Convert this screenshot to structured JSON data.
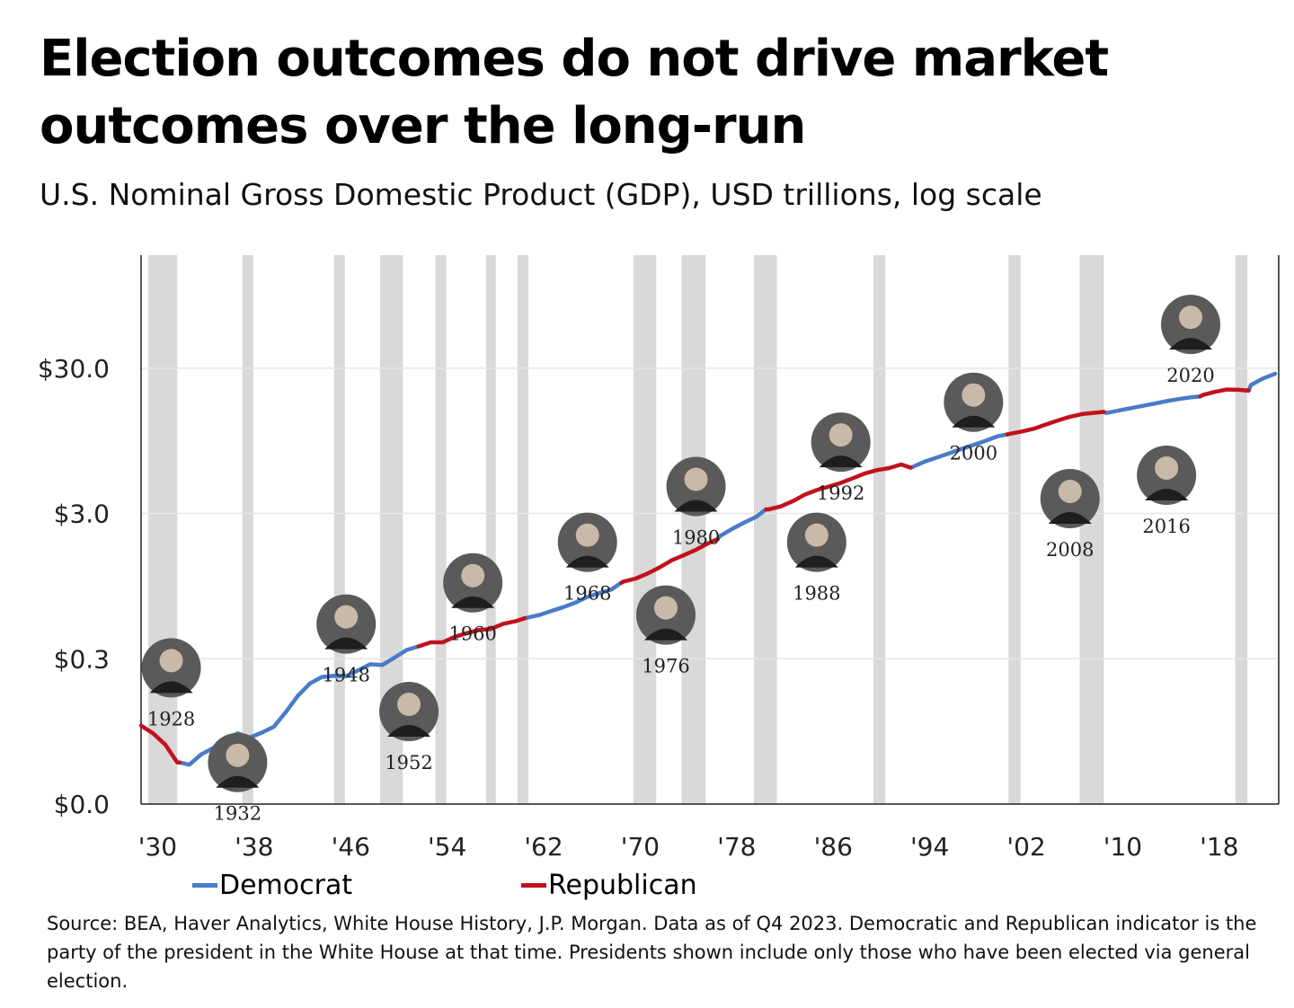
{
  "title": "Election outcomes do not drive market outcomes over the long-run",
  "subtitle": "U.S. Nominal Gross Domestic Product (GDP), USD trillions, log scale",
  "source": "Source: BEA, Haver Analytics, White House History, J.P. Morgan. Data as of Q4 2023. Democratic and Republican indicator is the party of the president in the White House at that time. Presidents shown include only those who have been elected via general election.",
  "legend": {
    "democrat": "Democrat",
    "republican": "Republican"
  },
  "colors": {
    "democrat": "#4a7bc8",
    "republican": "#c0121c",
    "recession": "#d9d9d9",
    "grid": "#e6e6e6"
  },
  "chart_data": {
    "type": "line",
    "title": "Election outcomes do not drive market outcomes over the long-run",
    "ylabel": "U.S. Nominal Gross Domestic Product (GDP), USD trillions, log scale",
    "y_scale": "log",
    "xlim": [
      1929,
      2023
    ],
    "y_ticks": [
      {
        "value": 0.03,
        "label": "$0.0"
      },
      {
        "value": 0.3,
        "label": "$0.3"
      },
      {
        "value": 3.0,
        "label": "$3.0"
      },
      {
        "value": 30.0,
        "label": "$30.0"
      }
    ],
    "x_ticks": [
      {
        "value": 1930,
        "label": "'30"
      },
      {
        "value": 1938,
        "label": "'38"
      },
      {
        "value": 1946,
        "label": "'46"
      },
      {
        "value": 1954,
        "label": "'54"
      },
      {
        "value": 1962,
        "label": "'62"
      },
      {
        "value": 1970,
        "label": "'70"
      },
      {
        "value": 1978,
        "label": "'78"
      },
      {
        "value": 1986,
        "label": "'86"
      },
      {
        "value": 1994,
        "label": "'94"
      },
      {
        "value": 2002,
        "label": "'02"
      },
      {
        "value": 2010,
        "label": "'10"
      },
      {
        "value": 2018,
        "label": "'18"
      }
    ],
    "grid": true,
    "legend_position": "bottom-left",
    "recessions": [
      [
        1929.6,
        1932.0
      ],
      [
        1937.4,
        1938.3
      ],
      [
        1945.0,
        1945.9
      ],
      [
        1948.8,
        1950.7
      ],
      [
        1953.4,
        1954.3
      ],
      [
        1957.6,
        1958.4
      ],
      [
        1960.2,
        1961.1
      ],
      [
        1969.8,
        1971.7
      ],
      [
        1973.8,
        1975.8
      ],
      [
        1979.8,
        1981.7
      ],
      [
        1989.7,
        1990.7
      ],
      [
        2000.9,
        2001.9
      ],
      [
        2006.8,
        2008.8
      ],
      [
        2019.7,
        2020.7
      ]
    ],
    "series": [
      {
        "name": "Democrat",
        "segments": [
          [
            [
              1932.2,
              0.058
            ],
            [
              1933.0,
              0.056
            ],
            [
              1934.0,
              0.066
            ],
            [
              1935.0,
              0.073
            ],
            [
              1936.0,
              0.083
            ],
            [
              1937.0,
              0.092
            ],
            [
              1938.0,
              0.086
            ],
            [
              1939.0,
              0.093
            ],
            [
              1940.0,
              0.102
            ],
            [
              1941.0,
              0.129
            ],
            [
              1942.0,
              0.167
            ],
            [
              1943.0,
              0.203
            ],
            [
              1944.0,
              0.225
            ],
            [
              1945.0,
              0.229
            ],
            [
              1946.0,
              0.228
            ],
            [
              1947.0,
              0.25
            ],
            [
              1948.0,
              0.275
            ],
            [
              1949.0,
              0.272
            ],
            [
              1950.0,
              0.305
            ],
            [
              1951.0,
              0.345
            ],
            [
              1952.0,
              0.365
            ]
          ],
          [
            [
              1960.8,
              0.57
            ],
            [
              1961.0,
              0.575
            ],
            [
              1962.0,
              0.6
            ],
            [
              1963.0,
              0.64
            ],
            [
              1964.0,
              0.68
            ],
            [
              1965.0,
              0.73
            ],
            [
              1966.0,
              0.8
            ],
            [
              1967.0,
              0.85
            ],
            [
              1968.0,
              0.9
            ],
            [
              1968.8,
              1.0
            ]
          ],
          [
            [
              1976.8,
              2.0
            ],
            [
              1977.0,
              2.1
            ],
            [
              1978.0,
              2.35
            ],
            [
              1979.0,
              2.6
            ],
            [
              1980.0,
              2.85
            ],
            [
              1980.8,
              3.2
            ]
          ],
          [
            [
              1992.8,
              6.2
            ],
            [
              1993.0,
              6.3
            ],
            [
              1994.0,
              6.85
            ],
            [
              1995.0,
              7.3
            ],
            [
              1996.0,
              7.8
            ],
            [
              1997.0,
              8.35
            ],
            [
              1998.0,
              8.9
            ],
            [
              1999.0,
              9.5
            ],
            [
              2000.0,
              10.2
            ],
            [
              2000.8,
              10.5
            ]
          ],
          [
            [
              2008.8,
              15.0
            ],
            [
              2009.0,
              14.75
            ],
            [
              2010.0,
              15.3
            ],
            [
              2011.0,
              15.9
            ],
            [
              2012.0,
              16.5
            ],
            [
              2013.0,
              17.1
            ],
            [
              2014.0,
              17.8
            ],
            [
              2015.0,
              18.4
            ],
            [
              2016.0,
              18.9
            ],
            [
              2016.8,
              19.2
            ]
          ],
          [
            [
              2020.8,
              21.0
            ],
            [
              2021.0,
              23.0
            ],
            [
              2022.0,
              25.5
            ],
            [
              2023.0,
              27.5
            ]
          ]
        ]
      },
      {
        "name": "Republican",
        "segments": [
          [
            [
              1929.0,
              0.104
            ],
            [
              1930.0,
              0.092
            ],
            [
              1931.0,
              0.077
            ],
            [
              1932.0,
              0.058
            ],
            [
              1932.2,
              0.058
            ]
          ],
          [
            [
              1952.0,
              0.365
            ],
            [
              1953.0,
              0.389
            ],
            [
              1954.0,
              0.39
            ],
            [
              1955.0,
              0.425
            ],
            [
              1956.0,
              0.45
            ],
            [
              1957.0,
              0.474
            ],
            [
              1958.0,
              0.481
            ],
            [
              1959.0,
              0.522
            ],
            [
              1960.0,
              0.543
            ],
            [
              1960.8,
              0.57
            ]
          ],
          [
            [
              1968.8,
              1.0
            ],
            [
              1969.0,
              1.02
            ],
            [
              1970.0,
              1.07
            ],
            [
              1971.0,
              1.16
            ],
            [
              1972.0,
              1.28
            ],
            [
              1973.0,
              1.43
            ],
            [
              1974.0,
              1.55
            ],
            [
              1975.0,
              1.69
            ],
            [
              1976.0,
              1.87
            ],
            [
              1976.8,
              2.0
            ]
          ],
          [
            [
              1980.8,
              3.2
            ],
            [
              1981.0,
              3.2
            ],
            [
              1982.0,
              3.35
            ],
            [
              1983.0,
              3.64
            ],
            [
              1984.0,
              4.04
            ],
            [
              1985.0,
              4.35
            ],
            [
              1986.0,
              4.59
            ],
            [
              1987.0,
              4.87
            ],
            [
              1988.0,
              5.25
            ],
            [
              1989.0,
              5.66
            ],
            [
              1990.0,
              5.96
            ],
            [
              1991.0,
              6.16
            ],
            [
              1992.0,
              6.52
            ],
            [
              1992.8,
              6.2
            ]
          ],
          [
            [
              2000.8,
              10.5
            ],
            [
              2001.0,
              10.6
            ],
            [
              2002.0,
              11.0
            ],
            [
              2003.0,
              11.5
            ],
            [
              2004.0,
              12.3
            ],
            [
              2005.0,
              13.1
            ],
            [
              2006.0,
              13.9
            ],
            [
              2007.0,
              14.5
            ],
            [
              2008.0,
              14.8
            ],
            [
              2008.8,
              15.0
            ]
          ],
          [
            [
              2016.8,
              19.2
            ],
            [
              2017.0,
              19.6
            ],
            [
              2018.0,
              20.6
            ],
            [
              2019.0,
              21.4
            ],
            [
              2020.0,
              21.3
            ],
            [
              2020.8,
              21.0
            ]
          ]
        ]
      }
    ],
    "annotations": [
      {
        "label": "1928",
        "x": 1931.5,
        "y": 0.26,
        "label_pos": "below"
      },
      {
        "label": "1932",
        "x": 1937.0,
        "y": 0.058,
        "label_pos": "below"
      },
      {
        "label": "1948",
        "x": 1946.0,
        "y": 0.52,
        "label_pos": "below"
      },
      {
        "label": "1952",
        "x": 1951.2,
        "y": 0.13,
        "label_pos": "below"
      },
      {
        "label": "1960",
        "x": 1956.5,
        "y": 1.0,
        "label_pos": "below"
      },
      {
        "label": "1968",
        "x": 1966.0,
        "y": 1.9,
        "label_pos": "below"
      },
      {
        "label": "1976",
        "x": 1972.5,
        "y": 0.6,
        "label_pos": "below"
      },
      {
        "label": "1980",
        "x": 1975.0,
        "y": 4.6,
        "label_pos": "below"
      },
      {
        "label": "1988",
        "x": 1985.0,
        "y": 1.9,
        "label_pos": "below"
      },
      {
        "label": "1992",
        "x": 1987.0,
        "y": 9.3,
        "label_pos": "below"
      },
      {
        "label": "2000",
        "x": 1998.0,
        "y": 17.5,
        "label_pos": "below"
      },
      {
        "label": "2008",
        "x": 2006.0,
        "y": 3.8,
        "label_pos": "below"
      },
      {
        "label": "2016",
        "x": 2014.0,
        "y": 5.5,
        "label_pos": "below"
      },
      {
        "label": "2020",
        "x": 2016.0,
        "y": 60.0,
        "label_pos": "below"
      }
    ]
  }
}
